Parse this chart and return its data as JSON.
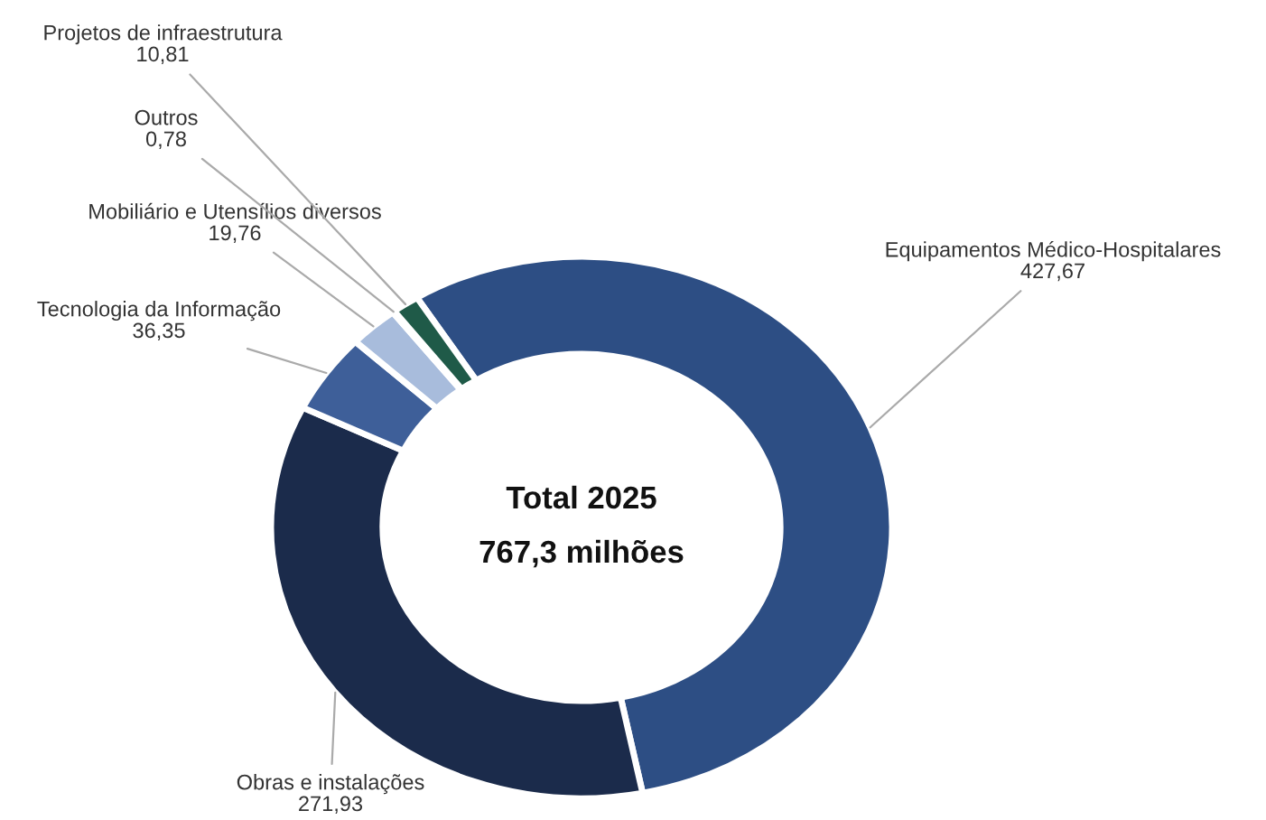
{
  "chart_data": {
    "type": "donut",
    "categories": [
      "Equipamentos Médico-Hospitalares",
      "Obras e instalações",
      "Tecnologia da Informação",
      "Mobiliário e Utensílios diversos",
      "Outros",
      "Projetos de infraestrutura"
    ],
    "values": [
      427.67,
      271.93,
      36.35,
      19.76,
      0.78,
      10.81
    ],
    "value_labels": [
      "427,67",
      "271,93",
      "36,35",
      "19,76",
      "0,78",
      "10,81"
    ],
    "colors": [
      "#2d4e84",
      "#1b2b4b",
      "#3e5f99",
      "#a8bcdc",
      "#8fa3c4",
      "#1f5a48"
    ],
    "annotations": [
      "Total 2025",
      "767,3 milhões"
    ],
    "legend": false
  }
}
